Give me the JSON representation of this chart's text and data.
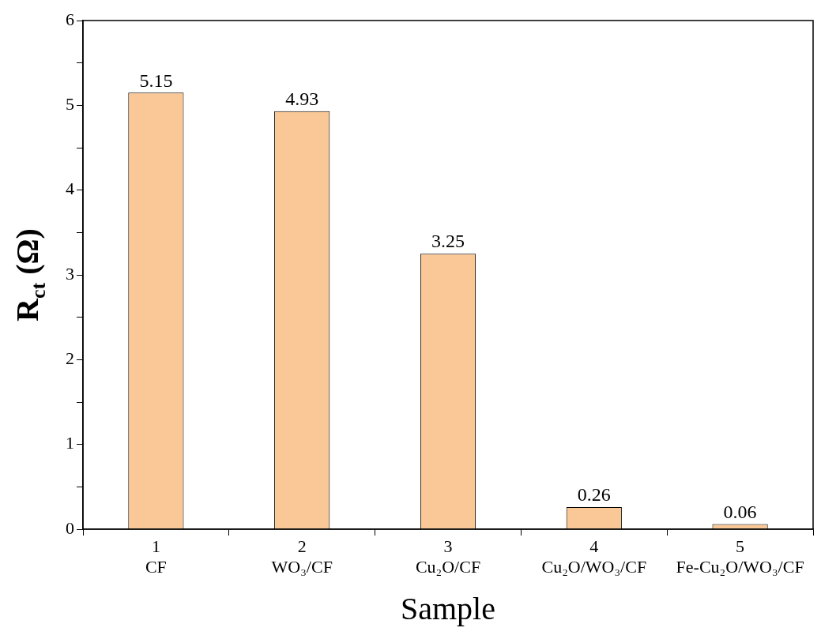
{
  "chart_data": {
    "type": "bar",
    "xlabel": "Sample",
    "ylabel": "R$_{ct}$ (Ω)",
    "categories": [
      "1\nCF",
      "2\nWO₃/CF",
      "3\nCu₂O/CF",
      "4\nCu₂O/WO₃/CF",
      "5\nFe-Cu₂O/WO₃/CF"
    ],
    "values": [
      5.15,
      4.93,
      3.25,
      0.26,
      0.06
    ],
    "color": "#f9c896",
    "ylim": [
      0,
      6
    ],
    "yticks": [
      0,
      {
        "value": 0.5,
        "label": null
      },
      1,
      {
        "value": 1.5,
        "label": null
      },
      2,
      {
        "value": 2.5,
        "label": null
      },
      3,
      {
        "value": 3.5,
        "label": null
      },
      4,
      {
        "value": 4.5,
        "label": null
      },
      5,
      {
        "value": 5.5,
        "label": null
      },
      6
    ],
    "data_labels": true,
    "grid": false,
    "legend": false
  }
}
